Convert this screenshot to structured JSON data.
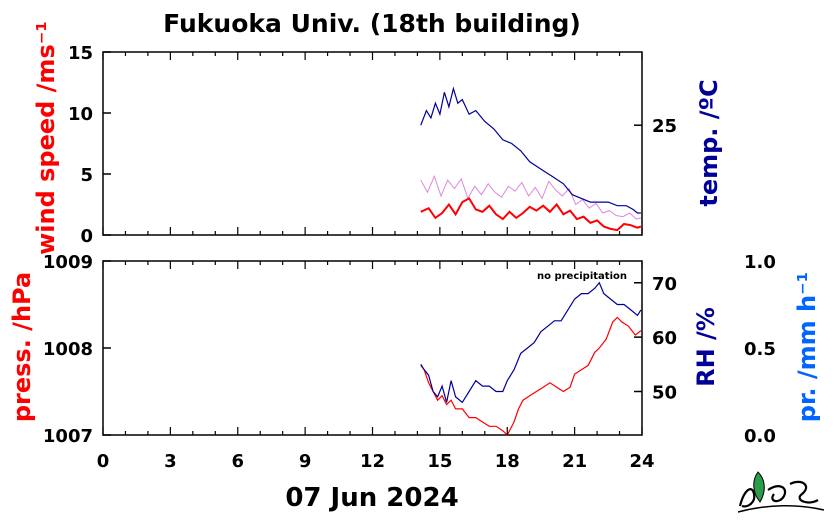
{
  "title": "Fukuoka Univ. (18th building)",
  "date_label": "07 Jun 2024",
  "colors": {
    "wind": "#ff0000",
    "wind_raw": "#dd88dd",
    "temp": "#000099",
    "pressure": "#ff0000",
    "rh": "#000099",
    "precip": "#0066ff",
    "axis": "#000000",
    "logo_green": "#2a9d4a"
  },
  "top_panel": {
    "left_label": "wind speed /ms⁻¹",
    "right_label": "temp. /ºC"
  },
  "bottom_panel": {
    "left_label": "press. /hPa",
    "right_label": "RH /%",
    "far_right_label": "pr. /mm h⁻¹",
    "annotation": "no precipitation"
  },
  "logo": {
    "icon": "mes-logo-icon"
  },
  "chart_data": [
    {
      "type": "line",
      "panel": "top",
      "xlabel": "",
      "x_ticks": [
        "0",
        "3",
        "6",
        "9",
        "12",
        "15",
        "18",
        "21",
        "24"
      ],
      "xlim": [
        0,
        24
      ],
      "y_left": {
        "label": "wind speed /ms⁻¹",
        "ylim": [
          0,
          15
        ],
        "ticks": [
          "0",
          "5",
          "10",
          "15"
        ]
      },
      "y_right": {
        "label": "temp. /ºC",
        "ticks": [
          "25"
        ],
        "ylim": [
          22,
          27
        ]
      },
      "series": [
        {
          "axis": "left",
          "style": "raw",
          "x": [
            14.15,
            14.45,
            14.75,
            15.05,
            15.35,
            15.65,
            15.95,
            16.25,
            16.55,
            16.85,
            17.15,
            17.45,
            17.75,
            18.05,
            18.35,
            18.65,
            18.95,
            19.25,
            19.55,
            19.85,
            20.15,
            20.45,
            20.75,
            21.05,
            21.35,
            21.65,
            21.95,
            22.25,
            22.55,
            22.85,
            23.15,
            23.45,
            23.75,
            23.95
          ],
          "y": [
            4.5,
            3.5,
            4.8,
            3.2,
            4.5,
            3.8,
            4.6,
            3.0,
            4.0,
            3.3,
            4.2,
            3.5,
            3.1,
            4.0,
            3.6,
            4.3,
            3.2,
            3.9,
            3.0,
            4.4,
            3.7,
            3.2,
            3.8,
            2.5,
            2.9,
            2.2,
            2.6,
            1.8,
            2.0,
            1.6,
            1.5,
            1.8,
            1.3,
            1.4
          ]
        },
        {
          "axis": "left",
          "style": "mean",
          "x": [
            14.15,
            14.5,
            14.8,
            15.1,
            15.4,
            15.7,
            16.0,
            16.3,
            16.6,
            16.9,
            17.2,
            17.5,
            17.8,
            18.1,
            18.4,
            18.7,
            19.0,
            19.3,
            19.6,
            19.9,
            20.2,
            20.5,
            20.8,
            21.1,
            21.4,
            21.7,
            22.0,
            22.3,
            22.6,
            22.9,
            23.2,
            23.5,
            23.8,
            23.95
          ],
          "y": [
            1.9,
            2.2,
            1.4,
            1.8,
            2.5,
            1.7,
            2.7,
            3.0,
            2.1,
            1.9,
            2.4,
            1.7,
            1.3,
            1.9,
            1.4,
            1.8,
            2.3,
            2.0,
            2.4,
            1.9,
            2.5,
            1.7,
            2.0,
            1.3,
            1.5,
            1.0,
            1.2,
            0.7,
            0.5,
            0.4,
            0.9,
            0.8,
            0.6,
            0.7
          ]
        },
        {
          "axis": "right",
          "style": "line",
          "x": [
            14.15,
            14.4,
            14.6,
            14.8,
            15.0,
            15.2,
            15.4,
            15.6,
            15.8,
            16.0,
            16.3,
            16.6,
            17.0,
            17.4,
            17.8,
            18.2,
            18.6,
            19.0,
            19.5,
            20.0,
            20.5,
            20.9,
            21.3,
            21.7,
            22.1,
            22.5,
            22.9,
            23.3,
            23.6,
            23.8,
            23.95
          ],
          "y": [
            25.0,
            25.4,
            25.2,
            25.6,
            25.3,
            25.9,
            25.5,
            26.0,
            25.6,
            25.7,
            25.3,
            25.4,
            25.1,
            24.9,
            24.6,
            24.5,
            24.3,
            24.0,
            23.8,
            23.6,
            23.4,
            23.1,
            23.0,
            22.9,
            22.9,
            22.9,
            22.8,
            22.8,
            22.7,
            22.6,
            22.6
          ]
        }
      ]
    },
    {
      "type": "line",
      "panel": "bottom",
      "xlabel": "07 Jun 2024",
      "x_ticks": [
        "0",
        "3",
        "6",
        "9",
        "12",
        "15",
        "18",
        "21",
        "24"
      ],
      "xlim": [
        0,
        24
      ],
      "y_left": {
        "label": "press. /hPa",
        "ylim": [
          1007,
          1009
        ],
        "ticks": [
          "1007",
          "1008",
          "1009"
        ]
      },
      "y_right": {
        "label": "RH /%",
        "ylim": [
          42,
          74
        ],
        "ticks": [
          "50",
          "60",
          "70"
        ]
      },
      "y_far_right": {
        "label": "pr. /mm h⁻¹",
        "ylim": [
          0,
          1
        ],
        "ticks": [
          "0.0",
          "0.5",
          "1.0"
        ]
      },
      "series": [
        {
          "axis": "left",
          "x": [
            14.15,
            14.3,
            14.5,
            14.7,
            14.9,
            15.1,
            15.3,
            15.5,
            15.7,
            16.0,
            16.3,
            16.6,
            16.9,
            17.2,
            17.5,
            17.8,
            18.0,
            18.3,
            18.5,
            18.7,
            19.0,
            19.3,
            19.6,
            19.9,
            20.2,
            20.5,
            20.8,
            21.0,
            21.3,
            21.6,
            21.9,
            22.1,
            22.4,
            22.7,
            22.9,
            23.1,
            23.4,
            23.7,
            23.95
          ],
          "y": [
            1007.8,
            1007.75,
            1007.6,
            1007.5,
            1007.4,
            1007.45,
            1007.35,
            1007.4,
            1007.3,
            1007.3,
            1007.2,
            1007.2,
            1007.15,
            1007.1,
            1007.1,
            1007.05,
            1007.0,
            1007.15,
            1007.3,
            1007.4,
            1007.45,
            1007.5,
            1007.55,
            1007.6,
            1007.55,
            1007.5,
            1007.55,
            1007.7,
            1007.75,
            1007.8,
            1007.95,
            1008.0,
            1008.1,
            1008.3,
            1008.35,
            1008.3,
            1008.25,
            1008.15,
            1008.2
          ]
        },
        {
          "axis": "right",
          "x": [
            14.15,
            14.3,
            14.5,
            14.7,
            14.9,
            15.1,
            15.3,
            15.5,
            15.7,
            16.0,
            16.3,
            16.6,
            16.9,
            17.2,
            17.5,
            17.8,
            18.0,
            18.3,
            18.6,
            18.9,
            19.2,
            19.5,
            19.8,
            20.1,
            20.4,
            20.7,
            21.0,
            21.3,
            21.6,
            21.9,
            22.1,
            22.3,
            22.6,
            22.9,
            23.2,
            23.5,
            23.8,
            23.95
          ],
          "y": [
            55,
            54,
            53,
            50,
            49,
            51,
            48,
            52,
            49,
            48,
            50,
            52,
            51,
            51,
            50,
            50,
            52,
            54,
            57,
            58,
            59,
            61,
            62,
            63,
            63,
            65,
            67,
            68,
            68,
            69,
            70,
            68,
            67,
            66,
            66,
            65,
            64,
            65
          ]
        }
      ]
    }
  ]
}
